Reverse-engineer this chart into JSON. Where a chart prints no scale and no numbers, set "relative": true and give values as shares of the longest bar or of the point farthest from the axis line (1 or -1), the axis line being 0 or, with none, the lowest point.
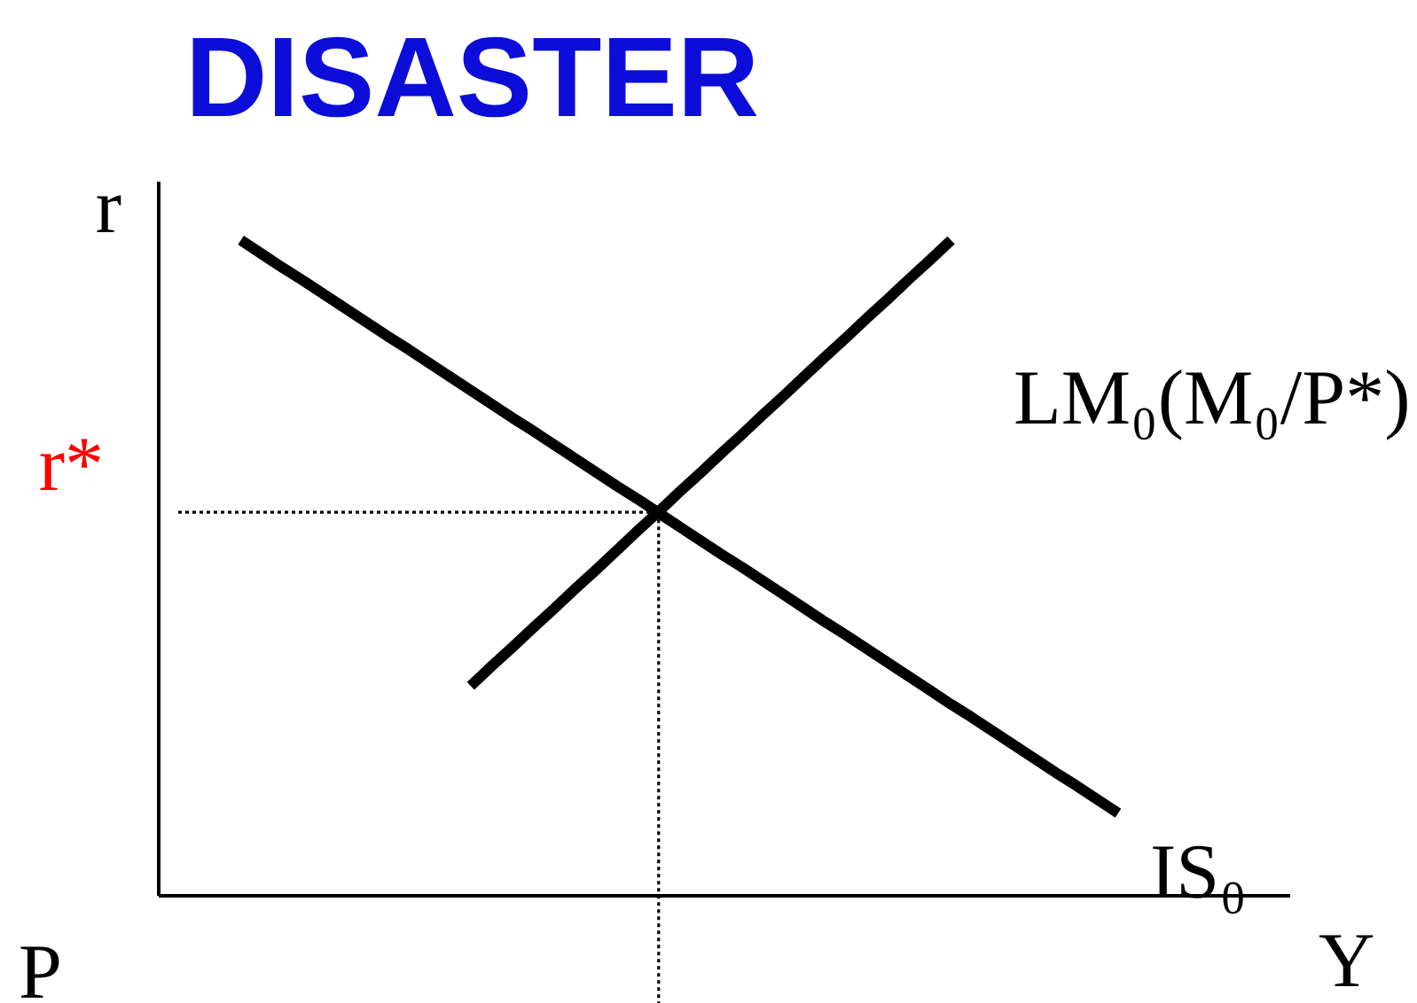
{
  "chart_data": {
    "type": "line",
    "title": "DISASTER",
    "xlabel": "Y",
    "ylabel": "r",
    "relative": true,
    "line_style": "solid",
    "categories": [
      null,
      null,
      null,
      null,
      null,
      null,
      null,
      null,
      null,
      null,
      null,
      null,
      null,
      null,
      null,
      null,
      null,
      null,
      null,
      null,
      null,
      null,
      null,
      null,
      null,
      null,
      null,
      null,
      null,
      null,
      null,
      null,
      null,
      null,
      null,
      null,
      null,
      null,
      null,
      null,
      null,
      null,
      null,
      null,
      null,
      null
    ],
    "series": [
      {
        "name": "LM₀(M₀/P*)",
        "color": "#000000",
        "values": [
          null,
          null,
          null,
          null,
          null,
          null,
          null,
          null,
          null,
          null,
          null,
          null,
          null,
          null,
          0.32,
          0.35,
          0.379,
          0.409,
          0.438,
          0.468,
          0.497,
          0.527,
          0.557,
          0.586,
          0.616,
          0.645,
          0.675,
          0.704,
          0.734,
          0.763,
          0.793,
          0.823,
          0.852,
          0.882,
          0.911,
          0.941,
          0.97,
          1.0,
          null,
          null,
          null,
          null,
          null,
          null,
          null,
          null
        ]
      },
      {
        "name": "IS₀",
        "color": "#000000",
        "values": [
          null,
          null,
          null,
          1.0,
          0.979,
          0.958,
          0.938,
          0.917,
          0.896,
          0.875,
          0.854,
          0.834,
          0.813,
          0.792,
          0.771,
          0.75,
          0.729,
          0.709,
          0.688,
          0.667,
          0.646,
          0.625,
          0.605,
          0.584,
          0.563,
          0.542,
          0.521,
          0.501,
          0.48,
          0.459,
          0.438,
          0.417,
          0.397,
          0.376,
          0.355,
          0.334,
          0.313,
          0.292,
          0.272,
          0.251,
          0.23,
          0.209,
          0.188,
          0.168,
          0.147,
          0.126
        ]
      },
      {
        "name": "r*",
        "color": "#000000",
        "line_style": "dotted",
        "values": [
          0.585,
          0.585,
          0.585,
          0.585,
          0.585,
          0.585,
          0.585,
          0.585,
          0.585,
          0.585,
          0.585,
          0.585,
          0.585,
          0.585,
          0.585,
          0.585,
          0.585,
          0.585,
          0.585,
          0.585,
          0.585,
          0.585,
          0.585,
          0.585,
          null,
          null,
          null,
          null,
          null,
          null,
          null,
          null,
          null,
          null,
          null,
          null,
          null,
          null,
          null,
          null,
          null,
          null,
          null,
          null,
          null,
          null
        ]
      }
    ],
    "annotations": [
      "P"
    ]
  }
}
